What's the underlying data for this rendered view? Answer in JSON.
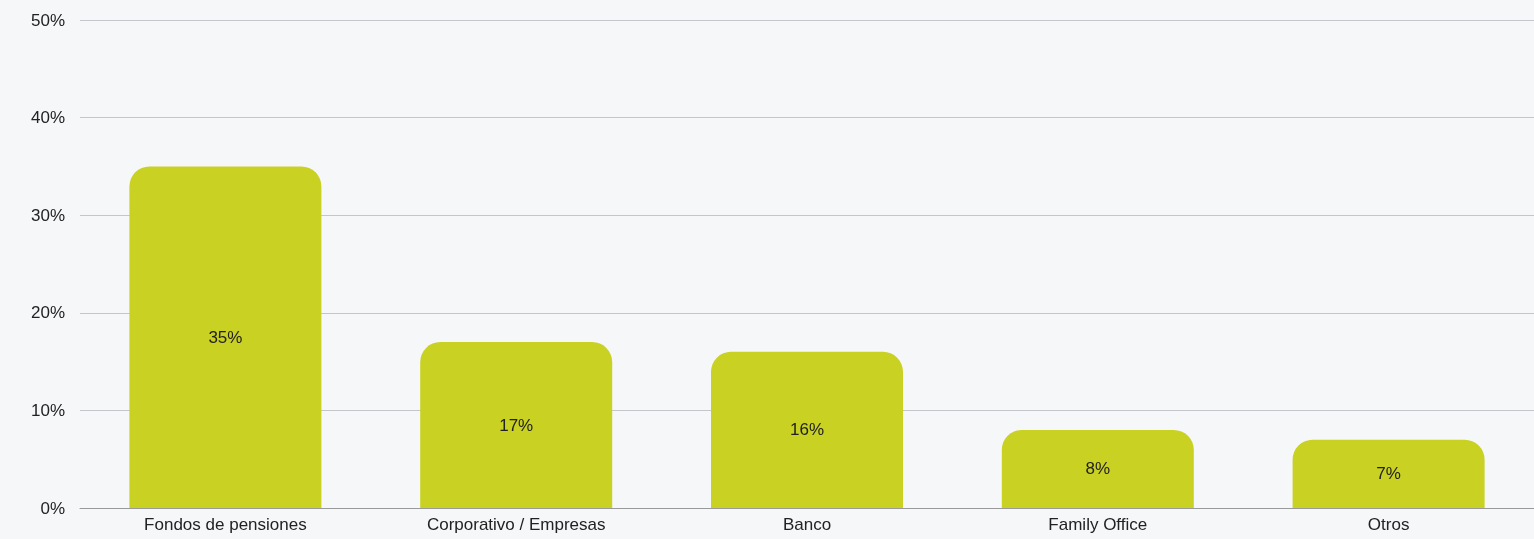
{
  "chart_data": {
    "type": "bar",
    "categories": [
      "Fondos de pensiones",
      "Corporativo / Empresas",
      "Banco",
      "Family Office",
      "Otros"
    ],
    "values": [
      35,
      17,
      16,
      8,
      7
    ],
    "value_labels": [
      "35%",
      "17%",
      "16%",
      "8%",
      "7%"
    ],
    "color": "#c9d122",
    "ylim": [
      0,
      50
    ],
    "yticks": [
      {
        "value": 0,
        "label": "0%"
      },
      {
        "value": 10,
        "label": "10%"
      },
      {
        "value": 20,
        "label": "20%"
      },
      {
        "value": 30,
        "label": "30%"
      },
      {
        "value": 40,
        "label": "40%"
      },
      {
        "value": 50,
        "label": "50%"
      }
    ],
    "grid": true
  }
}
